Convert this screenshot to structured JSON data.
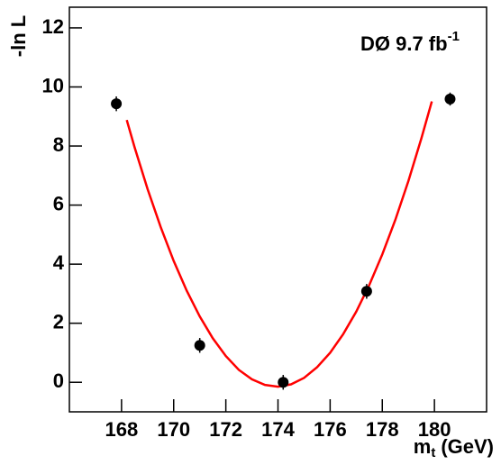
{
  "chart_data": {
    "type": "scatter",
    "ylabel": "-ln L",
    "xlabel": "m",
    "xlabel_sub": "t",
    "xlabel_unit": "(GeV)",
    "annotation": "DØ 9.7 fb",
    "annotation_sup": "-1",
    "xlim": [
      166,
      182
    ],
    "ylim": [
      -1,
      12.7
    ],
    "xticks": [
      168,
      170,
      172,
      174,
      176,
      178,
      180
    ],
    "yticks": [
      0,
      2,
      4,
      6,
      8,
      10,
      12
    ],
    "points": {
      "color": "#000000",
      "x": [
        167.8,
        171.0,
        174.2,
        177.4,
        180.6
      ],
      "values": [
        9.43,
        1.25,
        0.0,
        3.08,
        9.59
      ],
      "errors": [
        0.25,
        0.25,
        0.25,
        0.25,
        0.22
      ]
    },
    "fit": {
      "color": "#ff0000",
      "x": [
        168.2,
        168.5,
        169,
        169.5,
        170,
        170.5,
        171,
        171.5,
        172,
        172.5,
        173,
        173.5,
        174,
        174.5,
        175,
        175.5,
        176,
        176.5,
        177,
        177.5,
        178,
        178.5,
        179,
        179.5,
        179.9
      ],
      "values": [
        8.88,
        7.96,
        6.54,
        5.26,
        4.11,
        3.1,
        2.23,
        1.49,
        0.89,
        0.42,
        0.1,
        -0.09,
        -0.15,
        -0.07,
        0.15,
        0.51,
        1.0,
        1.63,
        2.39,
        3.29,
        4.33,
        5.5,
        6.81,
        8.26,
        9.51
      ]
    }
  }
}
